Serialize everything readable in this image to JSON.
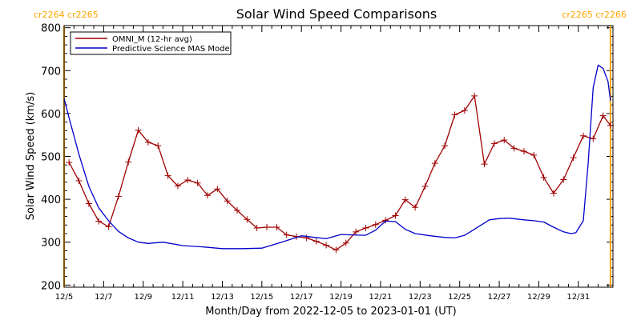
{
  "chart_data": {
    "type": "line",
    "title": "Solar Wind Speed Comparisons",
    "xlabel": "Month/Day from 2022-12-05 to 2023-01-01 (UT)",
    "ylabel": "Solar Wind Speed (km/s)",
    "xlim": [
      "2022-12-05",
      "2023-01-01T18:00"
    ],
    "ylim": [
      195,
      805
    ],
    "y_ticks": [
      200,
      300,
      400,
      500,
      600,
      700,
      800
    ],
    "x_ticks": [
      "2022-12-05",
      "2022-12-07",
      "2022-12-09",
      "2022-12-11",
      "2022-12-13",
      "2022-12-15",
      "2022-12-17",
      "2022-12-19",
      "2022-12-21",
      "2022-12-23",
      "2022-12-25",
      "2022-12-27",
      "2022-12-29",
      "2022-12-31"
    ],
    "x_tick_labels": [
      "12/5",
      "12/7",
      "12/9",
      "12/11",
      "12/13",
      "12/15",
      "12/17",
      "12/19",
      "12/21",
      "12/23",
      "12/25",
      "12/27",
      "12/29",
      "12/31"
    ],
    "legend_position": "top-left",
    "carrington_markers": [
      {
        "date": "2022-12-05",
        "labels": [
          "cr2264",
          "cr2265"
        ],
        "side": "left",
        "color": "#FFA500"
      },
      {
        "date": "2023-01-01T15:00",
        "labels": [
          "cr2265",
          "cr2266"
        ],
        "side": "right",
        "color": "#FFA500"
      }
    ],
    "series": [
      {
        "name": "OMNI_M (12-hr avg)",
        "color": "#A00000",
        "markers": "plus",
        "x": [
          "2022-12-05T06:00",
          "2022-12-05T18:00",
          "2022-12-06T06:00",
          "2022-12-06T18:00",
          "2022-12-07T06:00",
          "2022-12-07T18:00",
          "2022-12-08T06:00",
          "2022-12-08T18:00",
          "2022-12-09T06:00",
          "2022-12-09T18:00",
          "2022-12-10T06:00",
          "2022-12-10T18:00",
          "2022-12-11T06:00",
          "2022-12-11T18:00",
          "2022-12-12T06:00",
          "2022-12-12T18:00",
          "2022-12-13T06:00",
          "2022-12-13T18:00",
          "2022-12-14T06:00",
          "2022-12-14T18:00",
          "2022-12-15T06:00",
          "2022-12-15T18:00",
          "2022-12-16T06:00",
          "2022-12-16T18:00",
          "2022-12-17T06:00",
          "2022-12-17T18:00",
          "2022-12-18T06:00",
          "2022-12-18T18:00",
          "2022-12-19T06:00",
          "2022-12-19T18:00",
          "2022-12-20T06:00",
          "2022-12-20T18:00",
          "2022-12-21T06:00",
          "2022-12-21T18:00",
          "2022-12-22T06:00",
          "2022-12-22T18:00",
          "2022-12-23T06:00",
          "2022-12-23T18:00",
          "2022-12-24T06:00",
          "2022-12-24T18:00",
          "2022-12-25T06:00",
          "2022-12-25T18:00",
          "2022-12-26T06:00",
          "2022-12-26T18:00",
          "2022-12-27T06:00",
          "2022-12-27T18:00",
          "2022-12-28T06:00",
          "2022-12-28T18:00",
          "2022-12-29T06:00",
          "2022-12-29T18:00",
          "2022-12-30T06:00",
          "2022-12-30T18:00",
          "2022-12-31T06:00",
          "2022-12-31T18:00",
          "2023-01-01T06:00",
          "2023-01-01T15:00"
        ],
        "y": [
          486,
          443,
          390,
          349,
          336,
          407,
          487,
          561,
          533,
          525,
          455,
          431,
          445,
          438,
          409,
          424,
          396,
          374,
          353,
          333,
          335,
          335,
          317,
          313,
          310,
          302,
          293,
          282,
          298,
          324,
          333,
          341,
          351,
          362,
          399,
          381,
          430,
          484,
          525,
          597,
          607,
          641,
          482,
          530,
          538,
          519,
          512,
          503,
          451,
          414,
          446,
          497,
          548,
          541,
          595,
          572
        ]
      },
      {
        "name": "Predictive Science MAS Model",
        "color": "#0000CC",
        "markers": "none",
        "x": [
          "2022-12-05T00:00",
          "2022-12-05T06:00",
          "2022-12-05T18:00",
          "2022-12-06T06:00",
          "2022-12-06T18:00",
          "2022-12-07T06:00",
          "2022-12-07T18:00",
          "2022-12-08T06:00",
          "2022-12-08T18:00",
          "2022-12-09T06:00",
          "2022-12-10T00:00",
          "2022-12-11T00:00",
          "2022-12-12T00:00",
          "2022-12-13T00:00",
          "2022-12-14T00:00",
          "2022-12-15T00:00",
          "2022-12-16T00:00",
          "2022-12-17T00:00",
          "2022-12-17T12:00",
          "2022-12-18T06:00",
          "2022-12-19T00:00",
          "2022-12-19T12:00",
          "2022-12-20T06:00",
          "2022-12-20T18:00",
          "2022-12-21T06:00",
          "2022-12-21T18:00",
          "2022-12-22T06:00",
          "2022-12-22T18:00",
          "2022-12-23T12:00",
          "2022-12-24T06:00",
          "2022-12-24T18:00",
          "2022-12-25T06:00",
          "2022-12-25T18:00",
          "2022-12-26T12:00",
          "2022-12-27T00:00",
          "2022-12-27T12:00",
          "2022-12-28T06:00",
          "2022-12-28T18:00",
          "2022-12-29T06:00",
          "2022-12-29T18:00",
          "2022-12-30T06:00",
          "2022-12-30T15:00",
          "2022-12-30T21:00",
          "2022-12-31T06:00",
          "2022-12-31T12:00",
          "2022-12-31T18:00",
          "2023-01-01T00:00",
          "2023-01-01T06:00",
          "2023-01-01T12:00",
          "2023-01-01T15:00"
        ],
        "y": [
          635,
          590,
          505,
          430,
          380,
          350,
          325,
          310,
          300,
          297,
          300,
          292,
          289,
          285,
          285,
          286,
          300,
          315,
          312,
          308,
          318,
          317,
          316,
          328,
          349,
          348,
          330,
          320,
          315,
          311,
          310,
          316,
          330,
          352,
          355,
          356,
          352,
          350,
          347,
          335,
          324,
          320,
          322,
          350,
          485,
          660,
          713,
          705,
          675,
          630
        ]
      }
    ]
  }
}
